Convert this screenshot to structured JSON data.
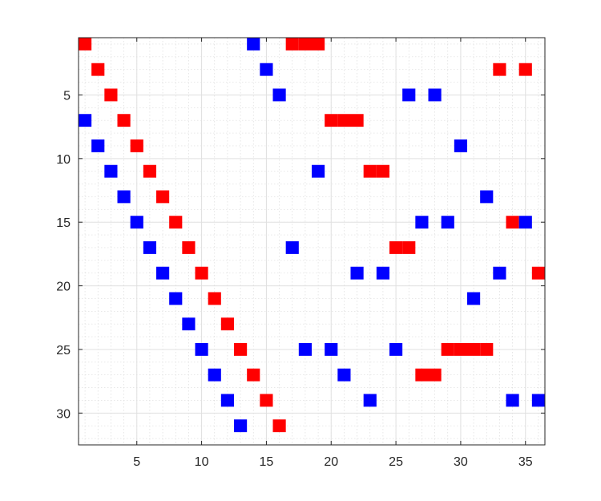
{
  "chart_data": {
    "type": "heatmap",
    "title": "",
    "xlabel": "",
    "ylabel": "",
    "xlim": [
      0.5,
      36.5
    ],
    "ylim": [
      0.5,
      32.5
    ],
    "y_reversed": true,
    "grid": true,
    "minor_grid": true,
    "x_ticks": [
      5,
      10,
      15,
      20,
      25,
      30,
      35
    ],
    "y_ticks": [
      5,
      10,
      15,
      20,
      25,
      30
    ],
    "colors": {
      "red": "#ff0000",
      "blue": "#0000ff",
      "grid": "#e0e0e0",
      "axis": "#262626"
    },
    "series": [
      {
        "color": "red",
        "cells": [
          [
            1,
            1
          ],
          [
            17,
            1
          ],
          [
            18,
            1
          ],
          [
            19,
            1
          ],
          [
            2,
            3
          ],
          [
            33,
            3
          ],
          [
            35,
            3
          ],
          [
            3,
            5
          ],
          [
            4,
            7
          ],
          [
            20,
            7
          ],
          [
            21,
            7
          ],
          [
            22,
            7
          ],
          [
            5,
            9
          ],
          [
            6,
            11
          ],
          [
            23,
            11
          ],
          [
            24,
            11
          ],
          [
            7,
            13
          ],
          [
            8,
            15
          ],
          [
            34,
            15
          ],
          [
            9,
            17
          ],
          [
            25,
            17
          ],
          [
            26,
            17
          ],
          [
            10,
            19
          ],
          [
            36,
            19
          ],
          [
            11,
            21
          ],
          [
            12,
            23
          ],
          [
            13,
            25
          ],
          [
            29,
            25
          ],
          [
            30,
            25
          ],
          [
            31,
            25
          ],
          [
            32,
            25
          ],
          [
            14,
            27
          ],
          [
            27,
            27
          ],
          [
            28,
            27
          ],
          [
            15,
            29
          ],
          [
            16,
            31
          ]
        ]
      },
      {
        "color": "blue",
        "cells": [
          [
            14,
            1
          ],
          [
            15,
            3
          ],
          [
            16,
            5
          ],
          [
            26,
            5
          ],
          [
            28,
            5
          ],
          [
            1,
            7
          ],
          [
            2,
            9
          ],
          [
            30,
            9
          ],
          [
            3,
            11
          ],
          [
            19,
            11
          ],
          [
            4,
            13
          ],
          [
            32,
            13
          ],
          [
            5,
            15
          ],
          [
            27,
            15
          ],
          [
            29,
            15
          ],
          [
            35,
            15
          ],
          [
            6,
            17
          ],
          [
            17,
            17
          ],
          [
            7,
            19
          ],
          [
            22,
            19
          ],
          [
            24,
            19
          ],
          [
            33,
            19
          ],
          [
            8,
            21
          ],
          [
            31,
            21
          ],
          [
            9,
            23
          ],
          [
            10,
            25
          ],
          [
            18,
            25
          ],
          [
            20,
            25
          ],
          [
            25,
            25
          ],
          [
            11,
            27
          ],
          [
            21,
            27
          ],
          [
            12,
            29
          ],
          [
            23,
            29
          ],
          [
            34,
            29
          ],
          [
            36,
            29
          ],
          [
            13,
            31
          ]
        ]
      }
    ]
  }
}
